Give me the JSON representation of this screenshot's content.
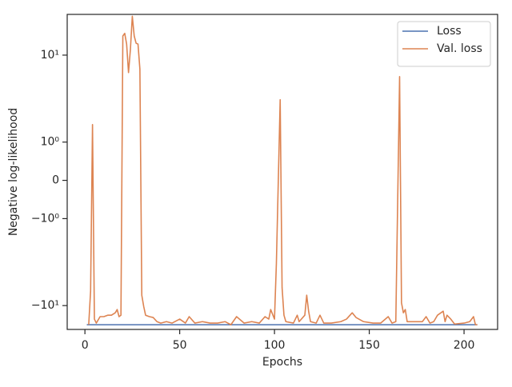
{
  "chart_data": {
    "type": "line",
    "xlabel": "Epochs",
    "ylabel": "Negative log-likelihood",
    "xlim": [
      -9.35,
      217.7
    ],
    "xticks": [
      0,
      50,
      100,
      150,
      200
    ],
    "yscale": "symlog",
    "linthresh": 1,
    "ylim": [
      -18.8,
      29.4
    ],
    "yticks": [
      {
        "value": -10,
        "label": "−10¹"
      },
      {
        "value": -1,
        "label": "−10⁰"
      },
      0,
      {
        "value": 1,
        "label": "10⁰"
      },
      {
        "value": 10,
        "label": "10¹"
      }
    ],
    "legend": "upper right",
    "series": [
      {
        "name": "Loss",
        "color": "#4c72b0",
        "x": [
          1,
          50,
          100,
          150,
          207
        ],
        "values": [
          -16.6,
          -16.6,
          -16.6,
          -16.6,
          -16.6
        ]
      },
      {
        "name": "Val. loss",
        "color": "#dd8452",
        "x": [
          2,
          3,
          4,
          5,
          6,
          8,
          10,
          12,
          14,
          16,
          17,
          18,
          19,
          20,
          21,
          22,
          23,
          24,
          25,
          26,
          27,
          28,
          29,
          30,
          31,
          32,
          34,
          36,
          38,
          40,
          43,
          46,
          50,
          53,
          55,
          58,
          62,
          66,
          70,
          74,
          77,
          80,
          84,
          88,
          92,
          95,
          97,
          98,
          100,
          101,
          103,
          104,
          105,
          106,
          110,
          112,
          113,
          116,
          117,
          118,
          119,
          122,
          124,
          126,
          130,
          135,
          138,
          141,
          143,
          147,
          152,
          156,
          160,
          162,
          164,
          166,
          167,
          168,
          169,
          170,
          173,
          178,
          180,
          182,
          184,
          186,
          189,
          190,
          191,
          193,
          195,
          200,
          203,
          205,
          206,
          207
        ],
        "values": [
          -16.6,
          -6.8,
          1.59,
          -14.3,
          -15.9,
          -13.4,
          -13.4,
          -12.9,
          -12.9,
          -12.1,
          -11.1,
          -13.4,
          -12.9,
          16.6,
          17.8,
          13.4,
          6.3,
          11.7,
          28,
          16.6,
          13.7,
          13.4,
          6.9,
          -7.6,
          -10.2,
          -12.9,
          -13.4,
          -13.7,
          -15.3,
          -15.9,
          -15.3,
          -15.9,
          -14.3,
          -15.9,
          -13.4,
          -15.9,
          -15.3,
          -15.9,
          -15.9,
          -15.3,
          -16.6,
          -13.4,
          -15.9,
          -15.3,
          -15.9,
          -13.4,
          -14.3,
          -11.1,
          -14.3,
          -3.27,
          3.07,
          -6.2,
          -12.9,
          -15.3,
          -15.9,
          -12.9,
          -15.3,
          -12.9,
          -7.6,
          -11.6,
          -15.3,
          -15.9,
          -12.9,
          -15.9,
          -15.9,
          -15.3,
          -14.3,
          -12.1,
          -13.7,
          -15.3,
          -15.9,
          -15.9,
          -13.4,
          -15.9,
          -15.3,
          5.66,
          -9.3,
          -12.1,
          -11.1,
          -15.3,
          -15.3,
          -15.3,
          -13.4,
          -15.9,
          -15.3,
          -12.9,
          -11.6,
          -15.3,
          -12.9,
          -14.3,
          -16.3,
          -15.9,
          -15.3,
          -13.4,
          -16.6,
          -16.6
        ]
      }
    ]
  }
}
